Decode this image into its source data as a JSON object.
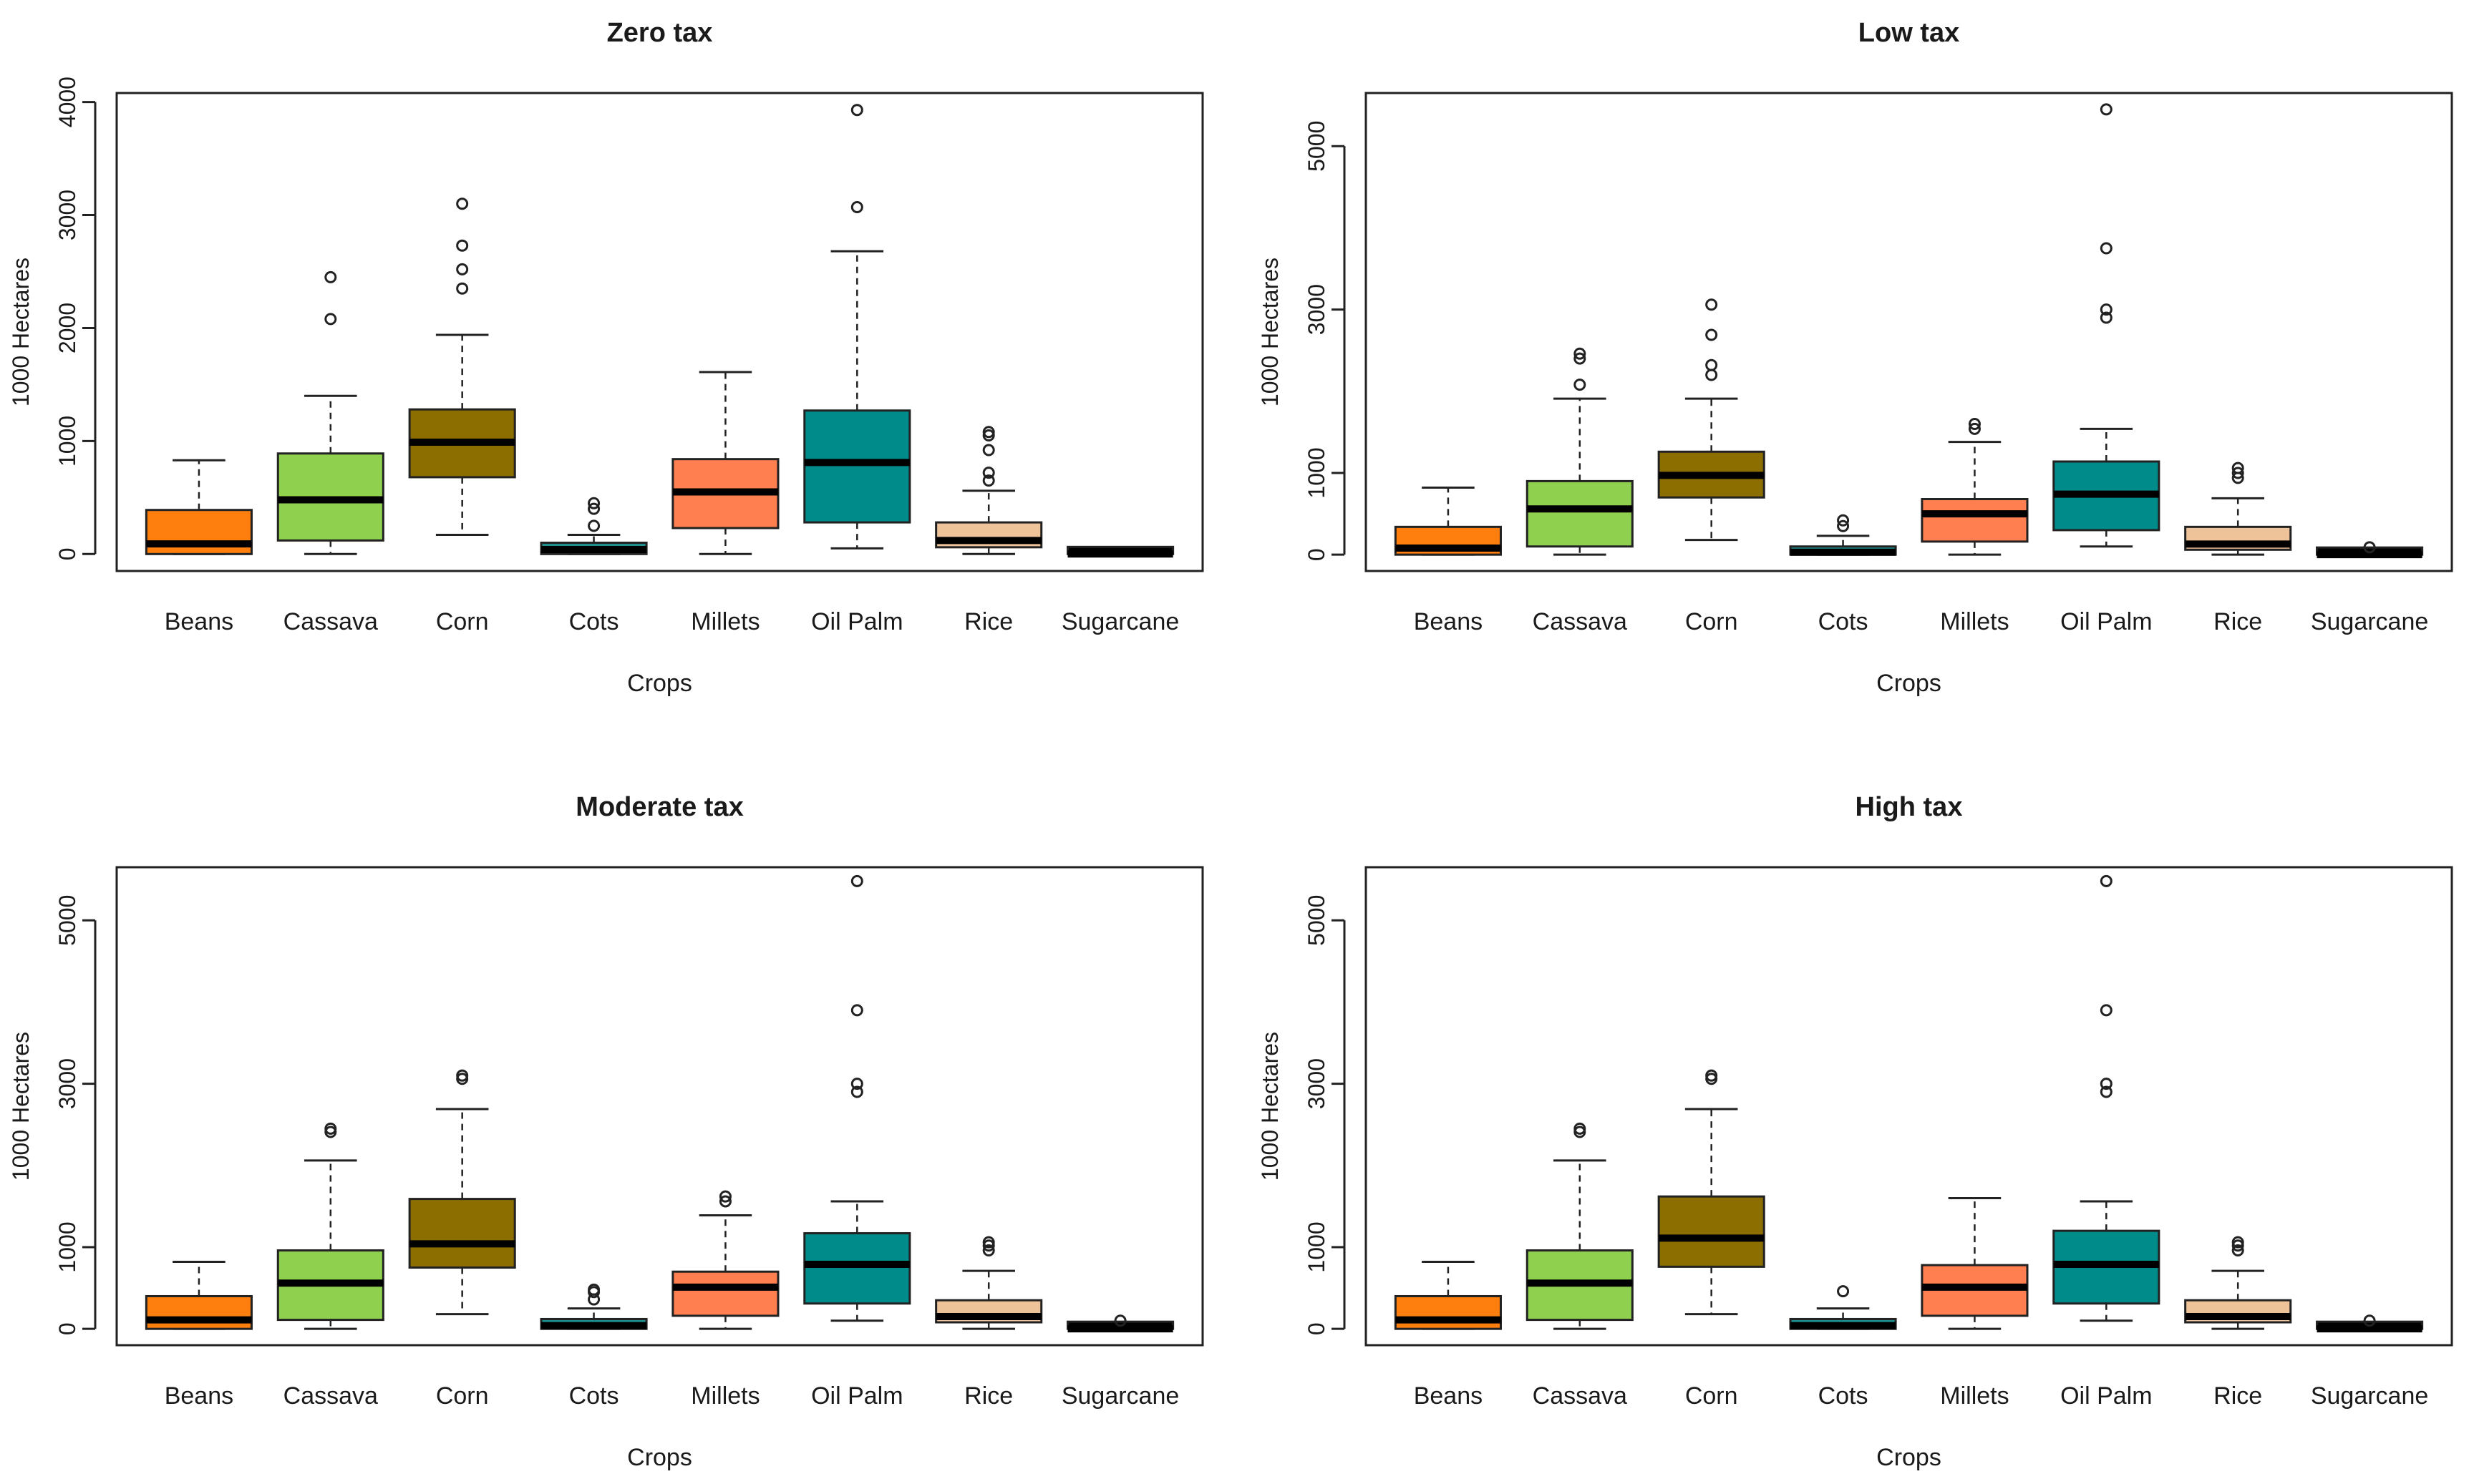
{
  "colors": {
    "Beans": "#ff7f0e",
    "Cassava": "#8fd14f",
    "Corn": "#8b6d00",
    "Cots": "#1f8f8f",
    "Millets": "#ff7f50",
    "Oil Palm": "#008b8b",
    "Rice": "#eec39a",
    "Sugarcane": "#000000"
  },
  "chart_data": [
    {
      "type": "box",
      "title": "Zero tax",
      "xlabel": "Crops",
      "ylabel": "1000 Hectares",
      "ylim": [
        -150,
        4080
      ],
      "yticks": [
        0,
        1000,
        2000,
        3000,
        4000
      ],
      "categories": [
        "Beans",
        "Cassava",
        "Corn",
        "Cots",
        "Millets",
        "Oil Palm",
        "Rice",
        "Sugarcane"
      ],
      "boxes": [
        {
          "low": 0,
          "q1": 0,
          "median": 90,
          "q3": 390,
          "high": 830,
          "outliers": []
        },
        {
          "low": 0,
          "q1": 120,
          "median": 480,
          "q3": 890,
          "high": 1400,
          "outliers": [
            2080,
            2450
          ]
        },
        {
          "low": 170,
          "q1": 680,
          "median": 990,
          "q3": 1280,
          "high": 1940,
          "outliers": [
            2350,
            2520,
            2730,
            3100
          ]
        },
        {
          "low": 0,
          "q1": 0,
          "median": 40,
          "q3": 100,
          "high": 170,
          "outliers": [
            250,
            400,
            450
          ]
        },
        {
          "low": 0,
          "q1": 230,
          "median": 550,
          "q3": 840,
          "high": 1610,
          "outliers": []
        },
        {
          "low": 50,
          "q1": 280,
          "median": 810,
          "q3": 1270,
          "high": 2680,
          "outliers": [
            3070,
            3930
          ]
        },
        {
          "low": 0,
          "q1": 60,
          "median": 120,
          "q3": 280,
          "high": 560,
          "outliers": [
            650,
            720,
            920,
            1050,
            1080
          ]
        },
        {
          "low": 0,
          "q1": 0,
          "median": 0,
          "q3": 40,
          "high": 40,
          "outliers": []
        }
      ]
    },
    {
      "type": "box",
      "title": "Low tax",
      "xlabel": "Crops",
      "ylabel": "1000 Hectares",
      "ylim": [
        -200,
        5650
      ],
      "yticks": [
        0,
        1000,
        3000,
        5000
      ],
      "categories": [
        "Beans",
        "Cassava",
        "Corn",
        "Cots",
        "Millets",
        "Oil Palm",
        "Rice",
        "Sugarcane"
      ],
      "boxes": [
        {
          "low": 0,
          "q1": 0,
          "median": 80,
          "q3": 340,
          "high": 820,
          "outliers": []
        },
        {
          "low": 0,
          "q1": 100,
          "median": 560,
          "q3": 900,
          "high": 1910,
          "outliers": [
            2080,
            2400,
            2460
          ]
        },
        {
          "low": 180,
          "q1": 700,
          "median": 970,
          "q3": 1260,
          "high": 1910,
          "outliers": [
            2200,
            2320,
            2690,
            3060
          ]
        },
        {
          "low": 0,
          "q1": 0,
          "median": 30,
          "q3": 100,
          "high": 230,
          "outliers": [
            350,
            420
          ]
        },
        {
          "low": 0,
          "q1": 160,
          "median": 500,
          "q3": 680,
          "high": 1380,
          "outliers": [
            1540,
            1600
          ]
        },
        {
          "low": 100,
          "q1": 300,
          "median": 740,
          "q3": 1140,
          "high": 1540,
          "outliers": [
            2900,
            3000,
            3750,
            5450
          ]
        },
        {
          "low": 0,
          "q1": 60,
          "median": 130,
          "q3": 340,
          "high": 690,
          "outliers": [
            940,
            1000,
            1060
          ]
        },
        {
          "low": 0,
          "q1": 0,
          "median": 0,
          "q3": 40,
          "high": 60,
          "outliers": [
            90
          ]
        }
      ]
    },
    {
      "type": "box",
      "title": "Moderate tax",
      "xlabel": "Crops",
      "ylabel": "1000 Hectares",
      "ylim": [
        -200,
        5650
      ],
      "yticks": [
        0,
        1000,
        3000,
        5000
      ],
      "categories": [
        "Beans",
        "Cassava",
        "Corn",
        "Cots",
        "Millets",
        "Oil Palm",
        "Rice",
        "Sugarcane"
      ],
      "boxes": [
        {
          "low": 0,
          "q1": 0,
          "median": 110,
          "q3": 400,
          "high": 820,
          "outliers": []
        },
        {
          "low": 0,
          "q1": 110,
          "median": 560,
          "q3": 960,
          "high": 2060,
          "outliers": [
            2410,
            2450
          ]
        },
        {
          "low": 180,
          "q1": 750,
          "median": 1040,
          "q3": 1590,
          "high": 2690,
          "outliers": [
            3060,
            3100
          ]
        },
        {
          "low": 0,
          "q1": 0,
          "median": 40,
          "q3": 120,
          "high": 250,
          "outliers": [
            360,
            450,
            480
          ]
        },
        {
          "low": 0,
          "q1": 160,
          "median": 510,
          "q3": 700,
          "high": 1390,
          "outliers": [
            1560,
            1620
          ]
        },
        {
          "low": 100,
          "q1": 310,
          "median": 790,
          "q3": 1170,
          "high": 1560,
          "outliers": [
            2900,
            3000,
            3900,
            5480
          ]
        },
        {
          "low": 0,
          "q1": 80,
          "median": 150,
          "q3": 350,
          "high": 710,
          "outliers": [
            960,
            1020,
            1060
          ]
        },
        {
          "low": 0,
          "q1": 0,
          "median": 0,
          "q3": 40,
          "high": 60,
          "outliers": [
            100
          ]
        }
      ]
    },
    {
      "type": "box",
      "title": "High tax",
      "xlabel": "Crops",
      "ylabel": "1000 Hectares",
      "ylim": [
        -200,
        5650
      ],
      "yticks": [
        0,
        1000,
        3000,
        5000
      ],
      "categories": [
        "Beans",
        "Cassava",
        "Corn",
        "Cots",
        "Millets",
        "Oil Palm",
        "Rice",
        "Sugarcane"
      ],
      "boxes": [
        {
          "low": 0,
          "q1": 0,
          "median": 110,
          "q3": 400,
          "high": 820,
          "outliers": []
        },
        {
          "low": 0,
          "q1": 110,
          "median": 560,
          "q3": 960,
          "high": 2060,
          "outliers": [
            2410,
            2450
          ]
        },
        {
          "low": 180,
          "q1": 760,
          "median": 1110,
          "q3": 1620,
          "high": 2690,
          "outliers": [
            3060,
            3100
          ]
        },
        {
          "low": 0,
          "q1": 0,
          "median": 40,
          "q3": 120,
          "high": 250,
          "outliers": [
            460
          ]
        },
        {
          "low": 0,
          "q1": 160,
          "median": 510,
          "q3": 780,
          "high": 1600,
          "outliers": []
        },
        {
          "low": 100,
          "q1": 310,
          "median": 790,
          "q3": 1200,
          "high": 1560,
          "outliers": [
            2900,
            3000,
            3900,
            5480
          ]
        },
        {
          "low": 0,
          "q1": 80,
          "median": 150,
          "q3": 350,
          "high": 710,
          "outliers": [
            960,
            1020,
            1060
          ]
        },
        {
          "low": 0,
          "q1": 0,
          "median": 0,
          "q3": 40,
          "high": 60,
          "outliers": [
            100
          ]
        }
      ]
    }
  ]
}
